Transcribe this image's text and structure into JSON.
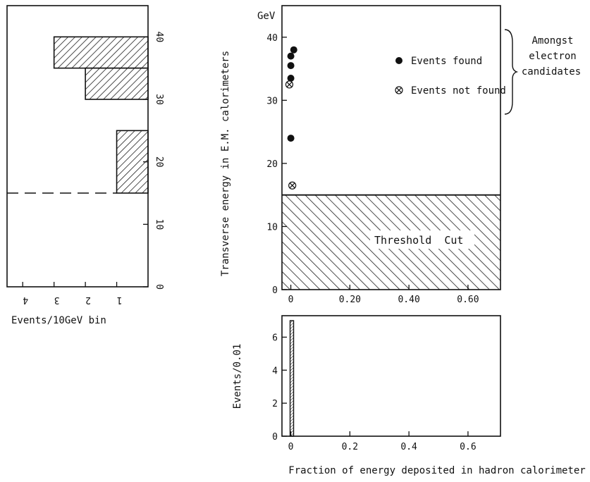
{
  "chart_data": [
    {
      "type": "bar",
      "orientation": "horizontal",
      "xlabel": "Events/10GeV bin",
      "x_ticks": [
        "4",
        "3",
        "2",
        "1"
      ],
      "xlim": [
        4.5,
        0
      ],
      "ylim": [
        0,
        45
      ],
      "y_ticks": [
        "0",
        "10",
        "20",
        "30",
        "40"
      ],
      "bins": [
        {
          "y_from": 15,
          "y_to": 25,
          "value": 1
        },
        {
          "y_from": 30,
          "y_to": 35,
          "value": 2
        },
        {
          "y_from": 35,
          "y_to": 40,
          "value": 3
        }
      ],
      "threshold_line": 15
    },
    {
      "type": "scatter",
      "ylabel": "Transverse energy in E.M. calorimeters",
      "y_unit": "GeV",
      "xlim": [
        -0.03,
        0.71
      ],
      "ylim": [
        0,
        45
      ],
      "x_ticks": [
        "0",
        "0.20",
        "0.40",
        "0.60"
      ],
      "y_ticks": [
        "0",
        "10",
        "20",
        "30",
        "40"
      ],
      "series": [
        {
          "name": "Events found",
          "marker": "filled-circle",
          "points": [
            [
              0.01,
              38
            ],
            [
              0.0,
              37
            ],
            [
              0.0,
              35.5
            ],
            [
              0.0,
              33.5
            ],
            [
              0.0,
              24
            ]
          ]
        },
        {
          "name": "Events not found",
          "marker": "circle-cross",
          "points": [
            [
              -0.005,
              32.5
            ],
            [
              0.005,
              16.5
            ]
          ]
        }
      ],
      "legend_group_label": [
        "Amongst",
        "electron",
        "candidates"
      ],
      "threshold_region": {
        "y_from": 0,
        "y_to": 15,
        "label": "Threshold  Cut"
      }
    },
    {
      "type": "bar",
      "ylabel": "Events/0.01",
      "xlabel": "Fraction of energy deposited in hadron calorimeter",
      "xlim": [
        -0.03,
        0.71
      ],
      "ylim": [
        0,
        7.3
      ],
      "x_ticks": [
        "0",
        "0.2",
        "0.4",
        "0.6"
      ],
      "y_ticks": [
        "0",
        "2",
        "4",
        "6"
      ],
      "bins": [
        {
          "x_from": -0.0025,
          "x_to": 0.0025,
          "value": 7
        }
      ]
    }
  ]
}
